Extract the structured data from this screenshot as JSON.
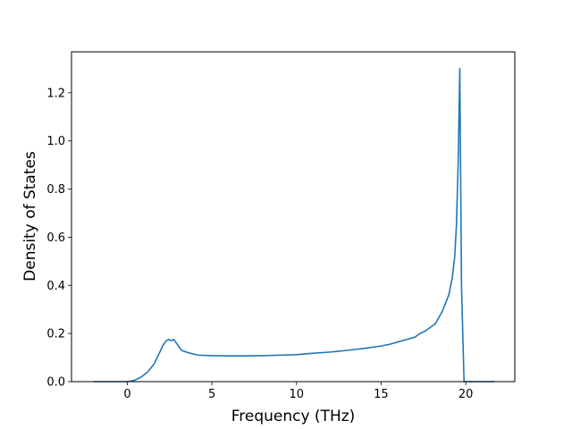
{
  "chart_data": {
    "type": "line",
    "xlabel": "Frequency (THz)",
    "ylabel": "Density of States",
    "xlim": [
      -3.3,
      22.9
    ],
    "ylim": [
      0.0,
      1.37
    ],
    "xticks": [
      0,
      5,
      10,
      15,
      20
    ],
    "yticks": [
      0.0,
      0.2,
      0.4,
      0.6,
      0.8,
      1.0,
      1.2
    ],
    "xtick_labels": [
      "0",
      "5",
      "10",
      "15",
      "20"
    ],
    "ytick_labels": [
      "0.0",
      "0.2",
      "0.4",
      "0.6",
      "0.8",
      "1.0",
      "1.2"
    ],
    "grid": false,
    "legend": "none",
    "line_color": "#1f77b4",
    "series": [
      {
        "x": [
          -2.0,
          0.0,
          0.4,
          0.8,
          1.2,
          1.6,
          1.9,
          2.1,
          2.3,
          2.45,
          2.6,
          2.75,
          2.9,
          3.2,
          3.6,
          4.2,
          5.0,
          6.0,
          7.0,
          8.0,
          9.0,
          10.0,
          11.0,
          12.0,
          13.0,
          14.0,
          15.0,
          15.5,
          16.0,
          16.5,
          17.0,
          17.3,
          17.6,
          17.9,
          18.2,
          18.4,
          18.6,
          18.8,
          19.0,
          19.2,
          19.35,
          19.45,
          19.55,
          19.65,
          19.75,
          19.9,
          20.2,
          21.7
        ],
        "y": [
          0.0,
          0.0,
          0.005,
          0.018,
          0.04,
          0.075,
          0.12,
          0.15,
          0.17,
          0.175,
          0.17,
          0.175,
          0.16,
          0.13,
          0.12,
          0.11,
          0.108,
          0.107,
          0.107,
          0.108,
          0.11,
          0.112,
          0.118,
          0.123,
          0.13,
          0.138,
          0.148,
          0.155,
          0.165,
          0.175,
          0.185,
          0.2,
          0.21,
          0.225,
          0.24,
          0.265,
          0.29,
          0.325,
          0.36,
          0.43,
          0.52,
          0.65,
          0.9,
          1.3,
          0.4,
          0.0,
          0.0,
          0.0
        ]
      }
    ]
  }
}
